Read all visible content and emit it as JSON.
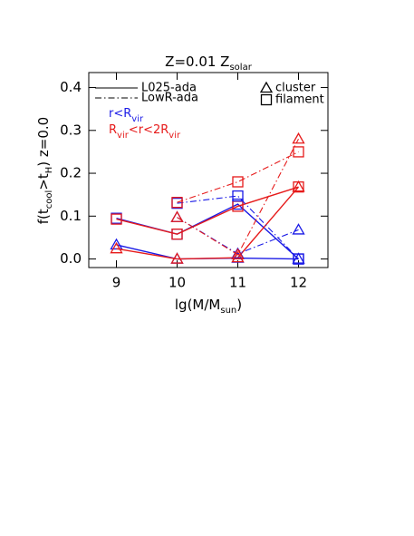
{
  "chart_data": {
    "type": "line",
    "title": [
      "Z=0.01 Z",
      "solar"
    ],
    "x_label": [
      "lg(M/M",
      "sun",
      ")"
    ],
    "y_label": [
      "f(t",
      "cool",
      ">t",
      "H",
      ") z=0.0"
    ],
    "x": [
      9,
      10,
      11,
      12
    ],
    "xlim": [
      8.5,
      12.5
    ],
    "xticks": [
      9,
      10,
      11,
      12
    ],
    "ylim": [
      -0.02,
      0.435
    ],
    "yticks": [
      {
        "value": 0,
        "label": "0.0"
      },
      {
        "value": 0.1,
        "label": "0.1"
      },
      {
        "value": 0.2,
        "label": "0.2"
      },
      {
        "value": 0.3,
        "label": "0.3"
      },
      {
        "value": 0.4,
        "label": "0.4"
      }
    ],
    "series": [
      {
        "color": "#1a1ae6",
        "dash": "solid",
        "marker": "triangle",
        "values": [
          0.033,
          0.0,
          0.002,
          0.0
        ]
      },
      {
        "color": "#1a1ae6",
        "dash": "solid",
        "marker": "square",
        "values": [
          0.095,
          0.058,
          0.128,
          0.0
        ]
      },
      {
        "color": "#e61a1a",
        "dash": "solid",
        "marker": "triangle",
        "values": [
          0.024,
          0.0,
          0.003,
          0.168
        ]
      },
      {
        "color": "#e61a1a",
        "dash": "solid",
        "marker": "square",
        "values": [
          0.093,
          0.058,
          0.123,
          0.168
        ]
      },
      {
        "color": "#1a1ae6",
        "dash": "dashdot",
        "marker": "triangle",
        "values": [
          null,
          0.097,
          0.012,
          0.068
        ]
      },
      {
        "color": "#1a1ae6",
        "dash": "dashdot",
        "marker": "square",
        "values": [
          null,
          0.13,
          0.147,
          0.0
        ]
      },
      {
        "color": "#e61a1a",
        "dash": "dashdot",
        "marker": "triangle",
        "values": [
          null,
          0.097,
          0.01,
          0.28
        ]
      },
      {
        "color": "#e61a1a",
        "dash": "dashdot",
        "marker": "square",
        "values": [
          null,
          0.132,
          0.18,
          0.25
        ]
      }
    ],
    "legend": {
      "line_styles": [
        {
          "label": "L025-ada",
          "dash": "solid"
        },
        {
          "label": "LowR-ada",
          "dash": "dashdot"
        }
      ],
      "markers": [
        {
          "label": "cluster",
          "marker": "triangle"
        },
        {
          "label": "filament",
          "marker": "square"
        }
      ],
      "colors": [
        {
          "label": [
            "r<R",
            "vir"
          ],
          "color": "#1a1ae6"
        },
        {
          "label": [
            "R",
            "vir",
            "<r<2R",
            "vir"
          ],
          "color": "#e61a1a"
        }
      ]
    }
  }
}
